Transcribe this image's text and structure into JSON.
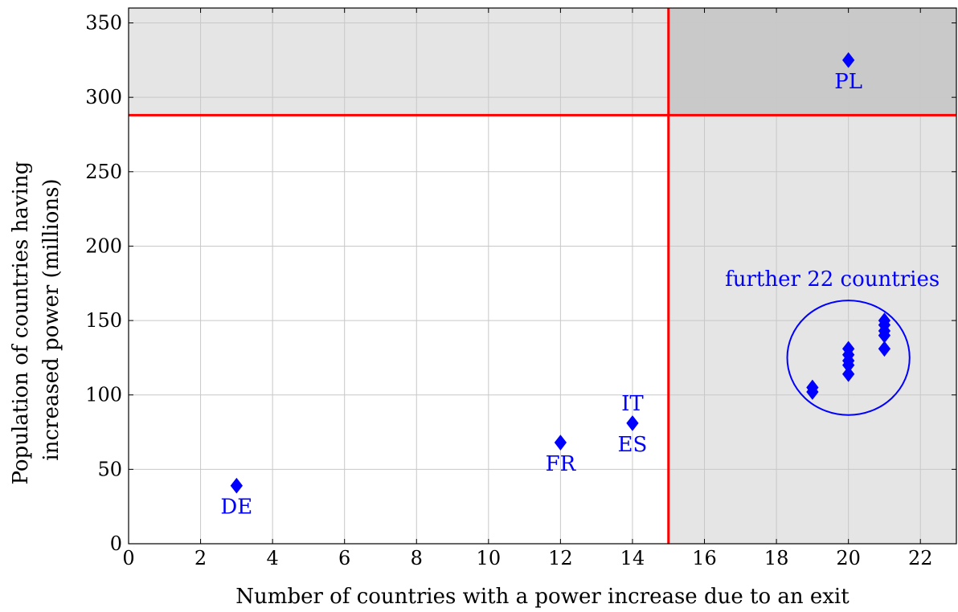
{
  "chart_data": {
    "type": "scatter",
    "xlabel": "Number of countries with a power increase due to an exit",
    "ylabel": [
      "Population of countries having",
      "increased power (millions)"
    ],
    "xlim": [
      0,
      23
    ],
    "ylim": [
      0,
      360
    ],
    "xticks": [
      0,
      2,
      4,
      6,
      8,
      10,
      12,
      14,
      16,
      18,
      20,
      22
    ],
    "yticks": [
      0,
      50,
      100,
      150,
      200,
      250,
      300,
      350
    ],
    "grid": true,
    "colors": {
      "points": "#0000ff",
      "threshold_lines": "#ff0000",
      "shade_light": "#e5e5e5",
      "shade_dark": "#c9c9c9",
      "grid": "#c8c8c8"
    },
    "thresholds": {
      "x": 15,
      "y": 288
    },
    "shaded_regions": [
      {
        "x": [
          0,
          23
        ],
        "y": [
          288,
          360
        ],
        "shade": "light"
      },
      {
        "x": [
          15,
          23
        ],
        "y": [
          0,
          360
        ],
        "shade": "light"
      },
      {
        "x": [
          15,
          23
        ],
        "y": [
          288,
          360
        ],
        "shade": "dark"
      }
    ],
    "series": [
      {
        "marker": "diamond",
        "points": [
          {
            "x": 3,
            "y": 39
          },
          {
            "x": 12,
            "y": 68
          },
          {
            "x": 14,
            "y": 81
          },
          {
            "x": 20,
            "y": 325
          },
          {
            "x": 19,
            "y": 102
          },
          {
            "x": 19,
            "y": 105
          },
          {
            "x": 20,
            "y": 114
          },
          {
            "x": 20,
            "y": 120
          },
          {
            "x": 20,
            "y": 123
          },
          {
            "x": 20,
            "y": 127
          },
          {
            "x": 20,
            "y": 131
          },
          {
            "x": 21,
            "y": 131
          },
          {
            "x": 21,
            "y": 140
          },
          {
            "x": 21,
            "y": 143
          },
          {
            "x": 21,
            "y": 147
          },
          {
            "x": 21,
            "y": 150
          }
        ]
      }
    ],
    "point_labels": [
      {
        "text": "DE",
        "x": 3,
        "y": 39,
        "position": "below"
      },
      {
        "text": "FR",
        "x": 12,
        "y": 68,
        "position": "below"
      },
      {
        "text": "IT",
        "x": 14,
        "y": 81,
        "position": "above"
      },
      {
        "text": "ES",
        "x": 14,
        "y": 81,
        "position": "below"
      },
      {
        "text": "PL",
        "x": 20,
        "y": 325,
        "position": "below"
      }
    ],
    "annotation": {
      "text": "further 22 countries",
      "ellipse_center": {
        "x": 20,
        "y": 125
      },
      "ellipse_radius": {
        "x": 1.7,
        "y": 38.5
      }
    }
  }
}
